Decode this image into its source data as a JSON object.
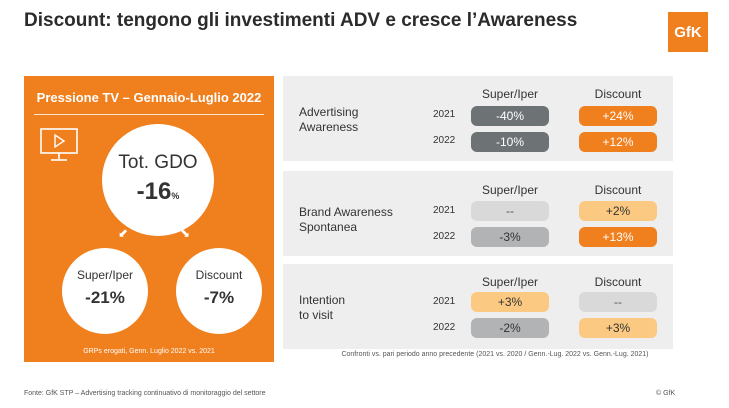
{
  "title": "Discount: tengono gli investimenti ADV e cresce l’Awareness",
  "logo": "GfK",
  "panel": {
    "title": "Pressione TV – Gennaio-Luglio 2022",
    "total_label": "Tot. GDO",
    "total_value": "-16",
    "total_unit": "%",
    "super_label": "Super/Iper",
    "super_value": "-21%",
    "discount_label": "Discount",
    "discount_value": "-7%",
    "footnote": "GRPs erogati, Genn. Luglio 2022 vs. 2021",
    "icons": [
      "tv-play-icon",
      "arrow-down-left-icon",
      "arrow-down-right-icon"
    ]
  },
  "columns": {
    "super": "Super/Iper",
    "discount": "Discount"
  },
  "blocks": [
    {
      "label_line1": "Advertising",
      "label_line2": "Awareness",
      "rows": [
        {
          "year": "2021",
          "super": "-40%",
          "discount": "+24%"
        },
        {
          "year": "2022",
          "super": "-10%",
          "discount": "+12%"
        }
      ]
    },
    {
      "label_line1": "Brand Awareness",
      "label_line2": "Spontanea",
      "rows": [
        {
          "year": "2021",
          "super": "--",
          "discount": "+2%"
        },
        {
          "year": "2022",
          "super": "-3%",
          "discount": "+13%"
        }
      ]
    },
    {
      "label_line1": "Intention",
      "label_line2": "to visit",
      "rows": [
        {
          "year": "2021",
          "super": "+3%",
          "discount": "--"
        },
        {
          "year": "2022",
          "super": "-2%",
          "discount": "+3%"
        }
      ]
    }
  ],
  "comparison_note": "Confronti vs. pari periodo anno precedente (2021 vs. 2020 / Genn.-Lug. 2022 vs. Genn.-Lug. 2021)",
  "source": "Fonte: GfK STP – Advertising tracking continuativo di monitoraggio del settore",
  "copyright": "© GfK",
  "colors": {
    "orange": "#f07f1e",
    "peach": "#fbc981",
    "dark_gray": "#6d7275",
    "mid_gray": "#b1b3b5",
    "light_gray": "#d9d9d9"
  }
}
